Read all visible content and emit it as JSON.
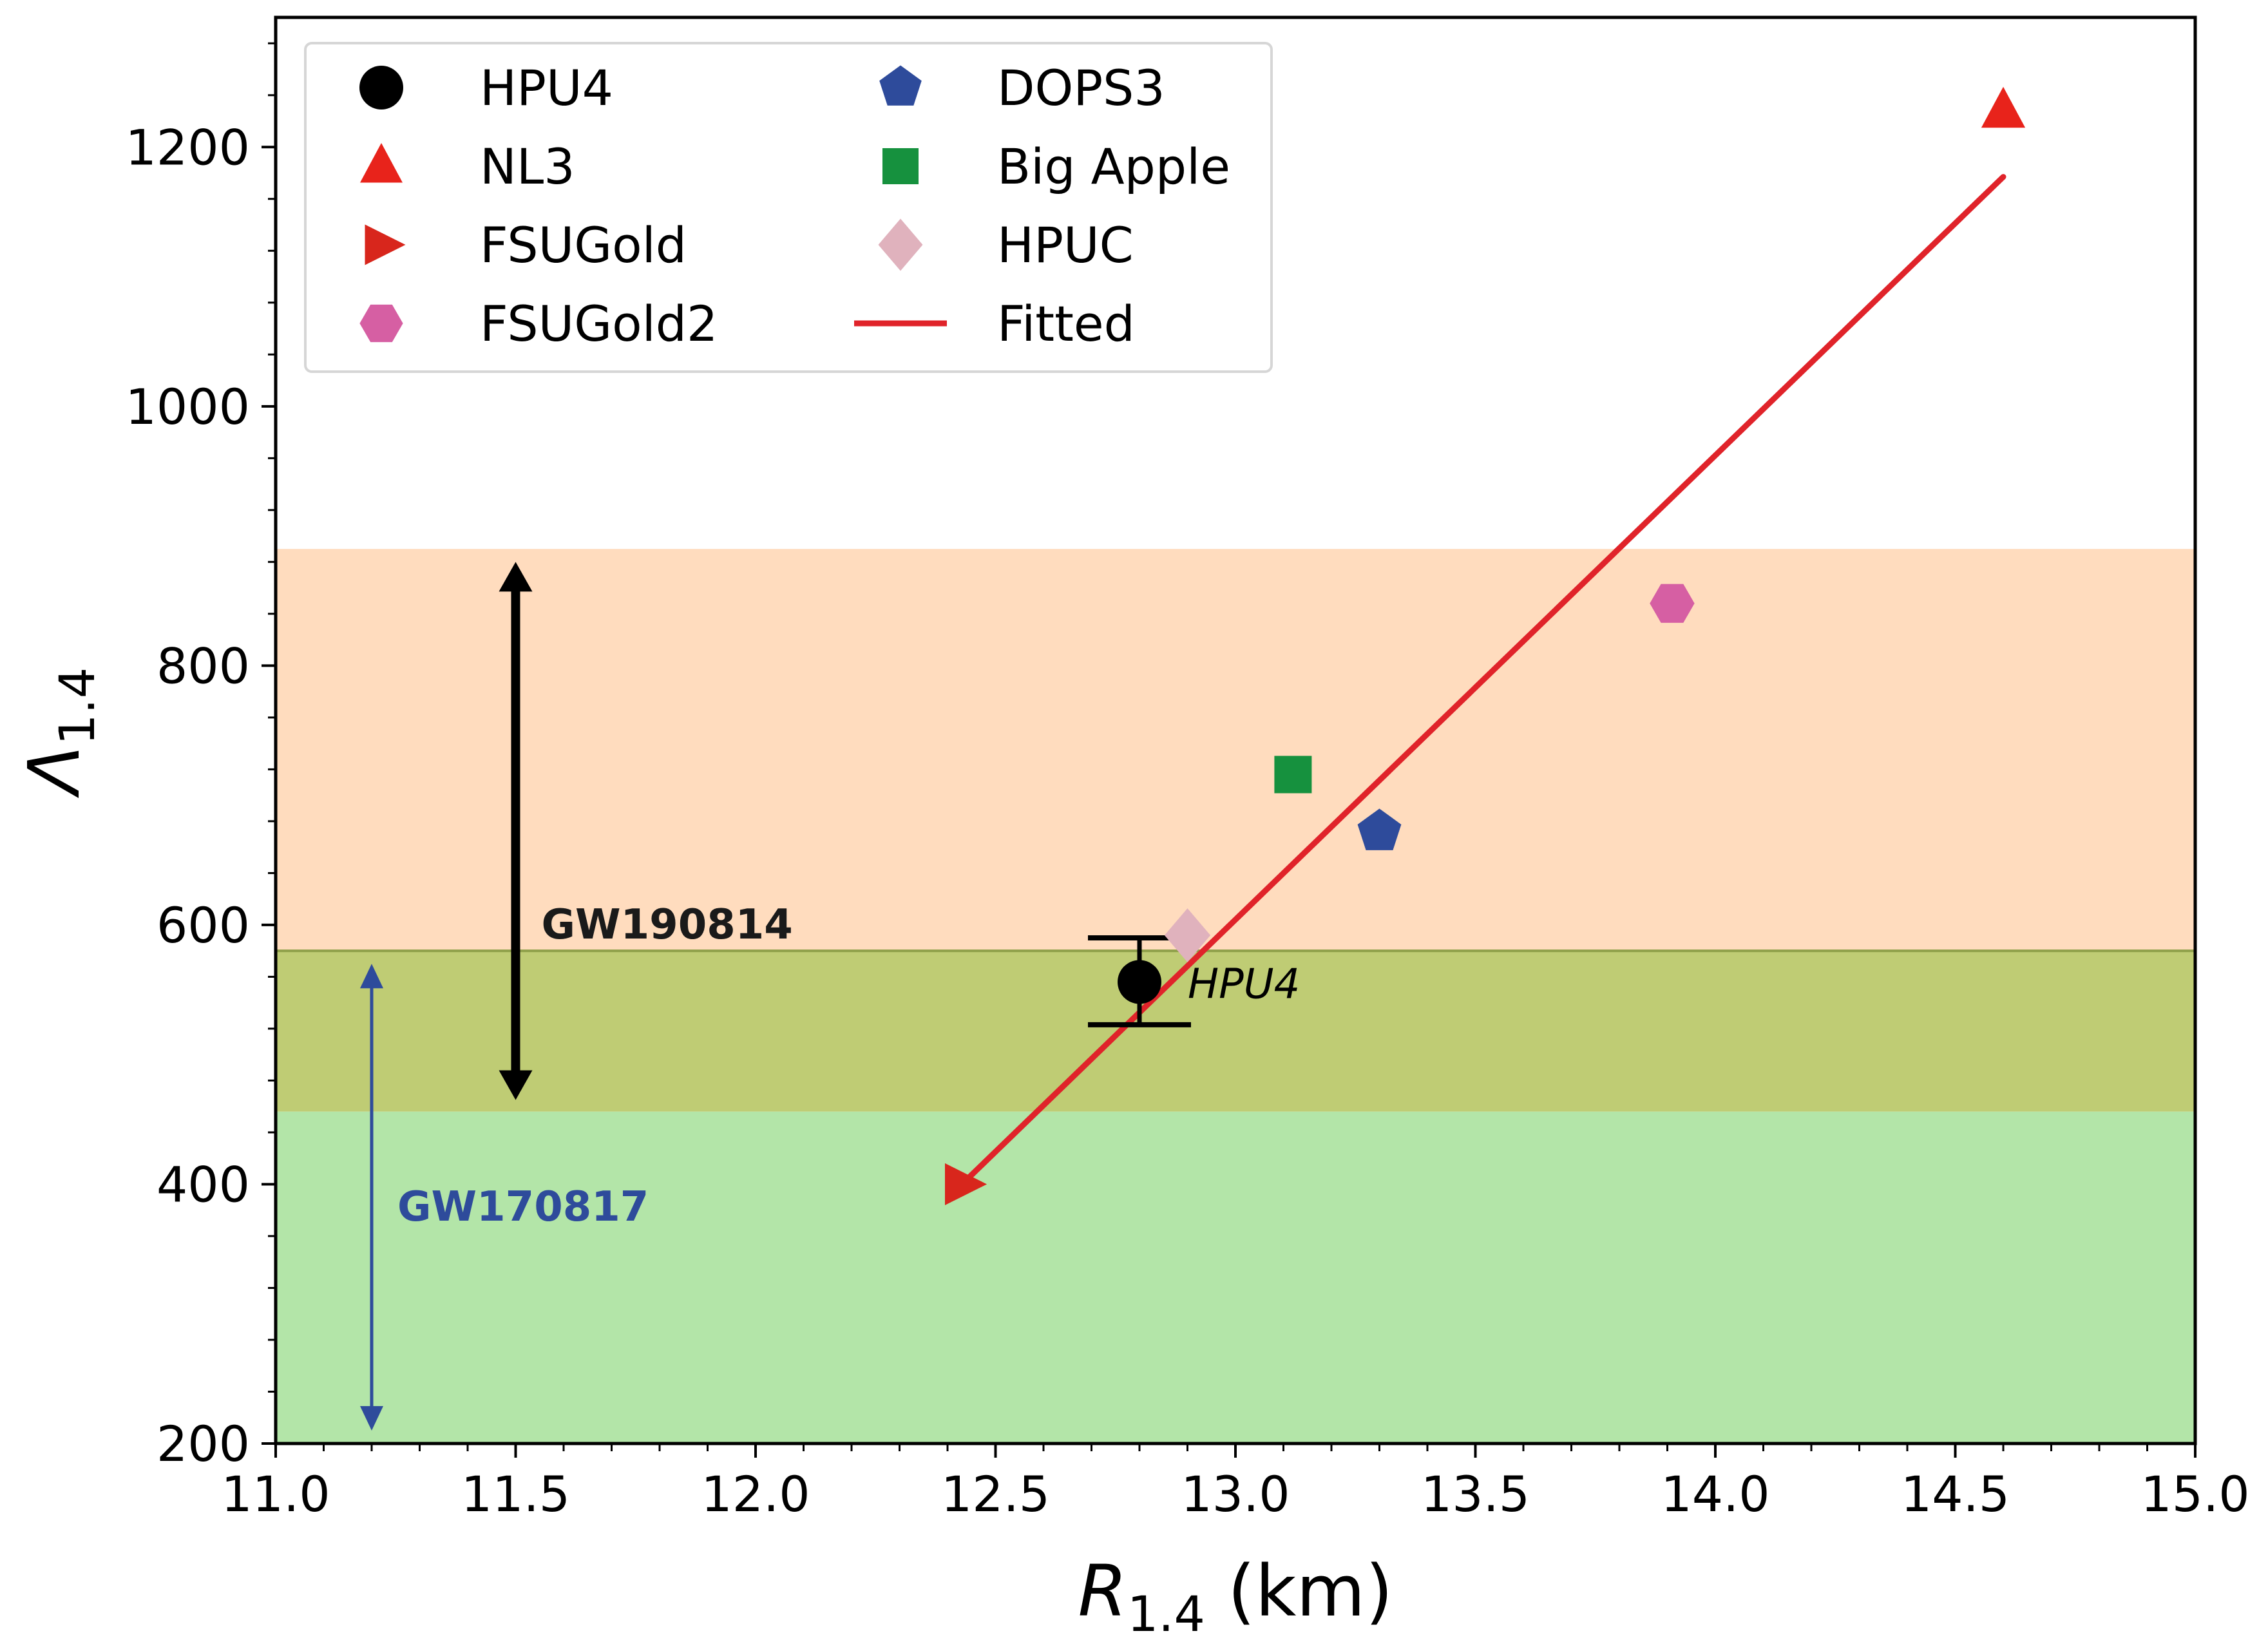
{
  "chart_data": {
    "type": "scatter",
    "xlabel": {
      "main": "R",
      "sub": "1.4",
      "unit": " (km)"
    },
    "ylabel": {
      "main": "Λ",
      "sub": "1.4"
    },
    "xlim": [
      11.0,
      15.0
    ],
    "ylim": [
      200,
      1300
    ],
    "x_ticks": [
      "11.0",
      "11.5",
      "12.0",
      "12.5",
      "13.0",
      "13.5",
      "14.0",
      "14.5",
      "15.0"
    ],
    "y_ticks": [
      "200",
      "400",
      "600",
      "800",
      "1000",
      "1200"
    ],
    "bands": [
      {
        "name": "GW190814",
        "y": [
          580,
          890
        ],
        "color": "#ffdcbe"
      },
      {
        "name": "overlap",
        "y": [
          456,
          580
        ],
        "color": "#bfcc74"
      },
      {
        "name": "GW170817",
        "y": [
          200,
          456
        ],
        "color": "#b3e5a8"
      }
    ],
    "points": [
      {
        "name": "HPU4",
        "x": 12.8,
        "y": 556,
        "marker": "circle",
        "color": "#000000",
        "err_low": 523,
        "err_high": 590
      },
      {
        "name": "NL3",
        "x": 14.6,
        "y": 1228,
        "marker": "triangle-up",
        "color": "#e8231b"
      },
      {
        "name": "FSUGold",
        "x": 12.43,
        "y": 400,
        "marker": "triangle-right",
        "color": "#d8261c"
      },
      {
        "name": "FSUGold2",
        "x": 13.91,
        "y": 848,
        "marker": "hexagon",
        "color": "#d65fa3"
      },
      {
        "name": "DOPS3",
        "x": 13.3,
        "y": 672,
        "marker": "pentagon",
        "color": "#2e4b9b"
      },
      {
        "name": "Big Apple",
        "x": 13.12,
        "y": 716,
        "marker": "square",
        "color": "#16913e"
      },
      {
        "name": "HPUC",
        "x": 12.9,
        "y": 592,
        "marker": "diamond",
        "color": "#e0b2bd"
      }
    ],
    "fit_line": {
      "name": "Fitted",
      "x": [
        12.43,
        14.6
      ],
      "y": [
        400,
        1177
      ],
      "color": "#e0232a"
    },
    "point_label": "HPU4",
    "annotations": [
      {
        "text": "GW190814",
        "x": 11.5,
        "y_from": 465,
        "y_to": 880,
        "color": "#000000",
        "text_color": "#1a1a1a"
      },
      {
        "text": "GW170817",
        "x": 11.2,
        "y_from": 210,
        "y_to": 570,
        "color": "#2e4b9b",
        "text_color": "#2e4b9b"
      }
    ],
    "legend": {
      "position": "top-left",
      "entries": [
        {
          "label": "HPU4",
          "marker": "circle",
          "color": "#000000"
        },
        {
          "label": "NL3",
          "marker": "triangle-up",
          "color": "#e8231b"
        },
        {
          "label": "FSUGold",
          "marker": "triangle-right",
          "color": "#d8261c"
        },
        {
          "label": "FSUGold2",
          "marker": "hexagon",
          "color": "#d65fa3"
        },
        {
          "label": "DOPS3",
          "marker": "pentagon",
          "color": "#2e4b9b"
        },
        {
          "label": "Big Apple",
          "marker": "square",
          "color": "#16913e"
        },
        {
          "label": "HPUC",
          "marker": "diamond",
          "color": "#e0b2bd"
        },
        {
          "label": "Fitted",
          "marker": "line",
          "color": "#e0232a"
        }
      ]
    }
  }
}
